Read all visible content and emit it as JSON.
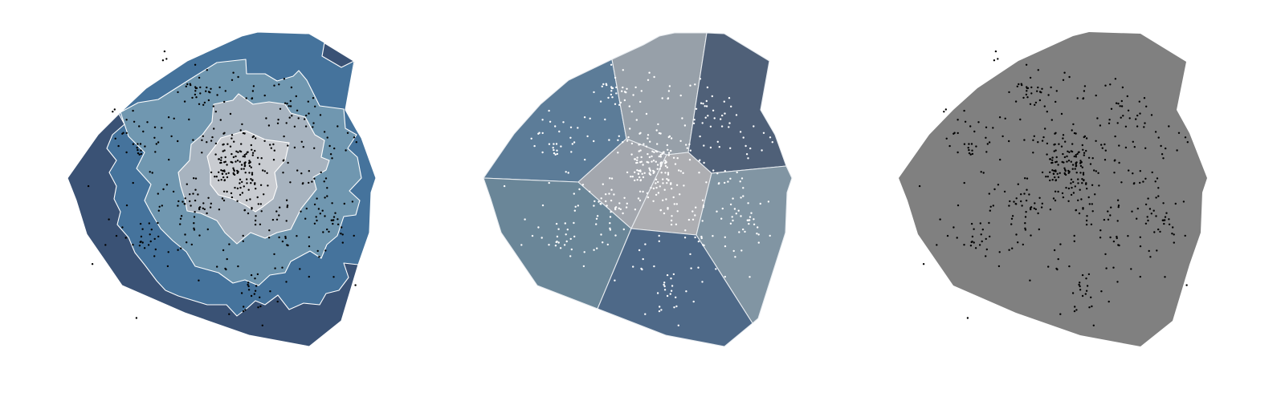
{
  "colors": {
    "bands": [
      "#3a5275",
      "#45739c",
      "#7097b0",
      "#a7b3bf",
      "#c9ccd1"
    ],
    "cells": {
      "nw": "#5c7c98",
      "n": "#97a0a9",
      "ne": "#4f6078",
      "w": "#6a8698",
      "c1": "#a3a7ae",
      "c2": "#adaeb2",
      "e": "#8195a3",
      "s": "#4e6988"
    },
    "uniform": "#808080",
    "points_dark": "#000000",
    "points_light": "#ffffff"
  },
  "panels": [
    {
      "id": "density-contour-panel",
      "style": "contour-bands"
    },
    {
      "id": "voronoi-region-panel",
      "style": "voronoi-cells"
    },
    {
      "id": "point-scatter-panel",
      "style": "uniform-fill"
    }
  ]
}
